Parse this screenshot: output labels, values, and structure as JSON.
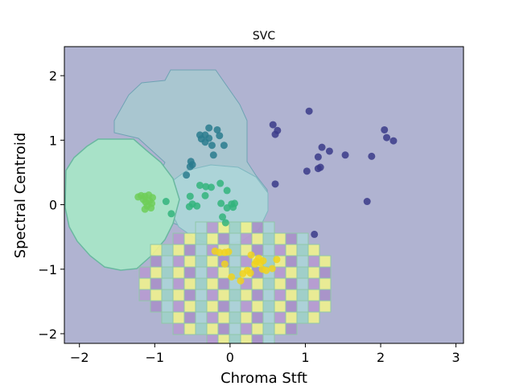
{
  "chart_data": {
    "type": "scatter",
    "title": "SVC",
    "xlabel": "Chroma Stft",
    "ylabel": "Spectral Centroid",
    "xlim": [
      -2.2,
      3.1
    ],
    "ylim": [
      -2.15,
      2.45
    ],
    "xticks": [
      -2,
      -1,
      0,
      1,
      2,
      3
    ],
    "yticks": [
      -2,
      -1,
      0,
      1,
      2
    ],
    "xtick_labels": [
      "−2",
      "−1",
      "0",
      "1",
      "2",
      "3"
    ],
    "ytick_labels": [
      "−2",
      "−1",
      "0",
      "1",
      "2"
    ],
    "grid": false,
    "colors": {
      "background_region": "#b0b3d1",
      "teal_region": "#a9c6d0",
      "light_teal_region": "#acd4d8",
      "green_region": "#a8e2c8",
      "yellow_region": "#f0f18e",
      "class_0": "#3b3b8a",
      "class_1": "#2a7b8e",
      "class_2": "#32b47c",
      "class_3": "#6ece58",
      "class_4": "#f0d21e"
    },
    "series": [
      {
        "color": "#3b3b8a",
        "points": [
          [
            1.05,
            1.45
          ],
          [
            0.57,
            1.24
          ],
          [
            0.63,
            1.15
          ],
          [
            0.6,
            1.09
          ],
          [
            2.05,
            1.16
          ],
          [
            2.08,
            1.04
          ],
          [
            2.17,
            0.99
          ],
          [
            1.22,
            0.89
          ],
          [
            1.32,
            0.83
          ],
          [
            1.53,
            0.77
          ],
          [
            1.88,
            0.75
          ],
          [
            1.17,
            0.74
          ],
          [
            1.2,
            0.58
          ],
          [
            1.17,
            0.56
          ],
          [
            1.02,
            0.52
          ],
          [
            0.6,
            0.32
          ],
          [
            1.82,
            0.05
          ],
          [
            1.12,
            -0.46
          ]
        ]
      },
      {
        "color": "#2a7b8e",
        "points": [
          [
            -0.28,
            1.19
          ],
          [
            -0.17,
            1.16
          ],
          [
            -0.4,
            1.08
          ],
          [
            -0.33,
            1.08
          ],
          [
            -0.14,
            1.07
          ],
          [
            -0.28,
            1.03
          ],
          [
            -0.38,
            1.02
          ],
          [
            -0.33,
            0.97
          ],
          [
            -0.24,
            0.92
          ],
          [
            -0.08,
            0.92
          ],
          [
            -0.22,
            0.77
          ],
          [
            -0.52,
            0.67
          ],
          [
            -0.5,
            0.62
          ],
          [
            -0.53,
            0.59
          ],
          [
            -0.58,
            0.46
          ]
        ]
      },
      {
        "color": "#32b47c",
        "points": [
          [
            -0.13,
            0.33
          ],
          [
            -0.4,
            0.3
          ],
          [
            -0.32,
            0.28
          ],
          [
            -0.25,
            0.27
          ],
          [
            -0.04,
            0.22
          ],
          [
            -0.53,
            0.13
          ],
          [
            -0.33,
            0.14
          ],
          [
            -0.85,
            0.05
          ],
          [
            -0.5,
            0.01
          ],
          [
            -0.12,
            0.02
          ],
          [
            0.06,
            0.02
          ],
          [
            0.02,
            0.01
          ],
          [
            -0.54,
            -0.03
          ],
          [
            -0.44,
            -0.02
          ],
          [
            -0.04,
            -0.05
          ],
          [
            0.04,
            -0.04
          ],
          [
            -0.78,
            -0.14
          ],
          [
            -0.1,
            -0.19
          ],
          [
            -0.06,
            -0.28
          ]
        ]
      },
      {
        "color": "#6ece58",
        "points": [
          [
            -1.18,
            0.14
          ],
          [
            -1.13,
            0.13
          ],
          [
            -1.08,
            0.15
          ],
          [
            -1.22,
            0.12
          ],
          [
            -1.03,
            0.11
          ],
          [
            -1.15,
            0.08
          ],
          [
            -1.07,
            0.06
          ],
          [
            -1.12,
            0.04
          ],
          [
            -1.04,
            0.02
          ],
          [
            -1.1,
            -0.02
          ],
          [
            -1.05,
            -0.05
          ],
          [
            -1.13,
            -0.07
          ]
        ]
      },
      {
        "color": "#f0d21e",
        "points": [
          [
            -0.2,
            -0.72
          ],
          [
            -0.14,
            -0.74
          ],
          [
            -0.07,
            -0.74
          ],
          [
            -0.02,
            -0.73
          ],
          [
            0.28,
            -0.78
          ],
          [
            0.38,
            -0.83
          ],
          [
            0.44,
            -0.87
          ],
          [
            0.35,
            -0.88
          ],
          [
            0.4,
            -0.9
          ],
          [
            0.33,
            -0.92
          ],
          [
            0.62,
            -0.85
          ],
          [
            0.56,
            -0.99
          ],
          [
            0.43,
            -1.0
          ],
          [
            0.48,
            -1.02
          ],
          [
            0.17,
            -1.07
          ],
          [
            0.23,
            -1.02
          ],
          [
            0.02,
            -1.12
          ],
          [
            -0.07,
            -0.92
          ],
          [
            0.14,
            -1.18
          ],
          [
            0.27,
            -1.06
          ]
        ]
      }
    ]
  }
}
